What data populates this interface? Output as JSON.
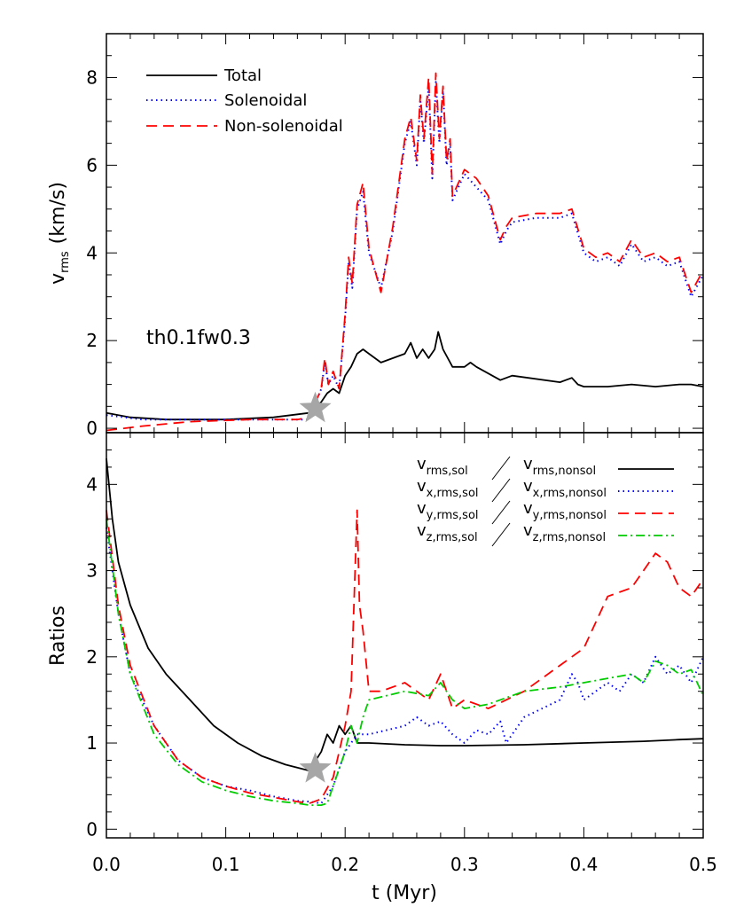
{
  "chart_data": [
    {
      "panel": "top",
      "type": "line",
      "xlabel": "",
      "ylabel": "v",
      "ylabel_sub": "rms",
      "ylabel_unit": "(km/s)",
      "annotation": "th0.1fw0.3",
      "xlim": [
        0,
        0.5
      ],
      "ylim": [
        -0.1,
        9.0
      ],
      "yticks": [
        0,
        2,
        4,
        6,
        8
      ],
      "ytick_labels": [
        "0",
        "2",
        "4",
        "6",
        "8"
      ],
      "legend_position": "top-left",
      "star_marker": {
        "x": 0.175,
        "y": 0.45
      },
      "series": [
        {
          "name": "Total",
          "color": "#000000",
          "dash": "solid",
          "x": [
            0.0,
            0.02,
            0.05,
            0.1,
            0.14,
            0.17,
            0.18,
            0.185,
            0.19,
            0.195,
            0.2,
            0.205,
            0.21,
            0.215,
            0.22,
            0.23,
            0.25,
            0.255,
            0.26,
            0.265,
            0.27,
            0.275,
            0.278,
            0.282,
            0.29,
            0.3,
            0.305,
            0.31,
            0.33,
            0.34,
            0.38,
            0.39,
            0.395,
            0.4,
            0.42,
            0.44,
            0.46,
            0.48,
            0.49,
            0.5
          ],
          "y": [
            0.35,
            0.25,
            0.2,
            0.2,
            0.25,
            0.35,
            0.6,
            0.8,
            0.9,
            0.8,
            1.2,
            1.4,
            1.7,
            1.8,
            1.7,
            1.5,
            1.7,
            1.95,
            1.6,
            1.8,
            1.6,
            1.8,
            2.2,
            1.8,
            1.4,
            1.4,
            1.5,
            1.4,
            1.1,
            1.2,
            1.05,
            1.15,
            1.0,
            0.95,
            0.95,
            1.0,
            0.95,
            1.0,
            1.0,
            0.95
          ]
        },
        {
          "name": "Solenoidal",
          "color": "#0000ff",
          "dash": "dotted",
          "x": [
            0.0,
            0.03,
            0.07,
            0.12,
            0.16,
            0.17,
            0.18,
            0.183,
            0.186,
            0.19,
            0.195,
            0.2,
            0.203,
            0.206,
            0.21,
            0.215,
            0.22,
            0.23,
            0.24,
            0.25,
            0.255,
            0.26,
            0.263,
            0.266,
            0.27,
            0.273,
            0.276,
            0.279,
            0.282,
            0.285,
            0.288,
            0.29,
            0.3,
            0.31,
            0.32,
            0.33,
            0.335,
            0.34,
            0.36,
            0.38,
            0.39,
            0.4,
            0.41,
            0.42,
            0.43,
            0.44,
            0.45,
            0.46,
            0.47,
            0.48,
            0.49,
            0.5
          ],
          "y": [
            0.3,
            0.2,
            0.2,
            0.2,
            0.2,
            0.2,
            0.9,
            1.5,
            1.0,
            1.2,
            0.9,
            2.5,
            3.8,
            3.2,
            5.0,
            5.4,
            4.0,
            3.2,
            4.5,
            6.5,
            7.0,
            6.0,
            7.5,
            6.5,
            7.8,
            5.7,
            7.9,
            6.5,
            7.7,
            6.0,
            6.5,
            5.2,
            5.8,
            5.5,
            5.2,
            4.2,
            4.5,
            4.7,
            4.8,
            4.8,
            4.9,
            4.0,
            3.8,
            3.9,
            3.7,
            4.2,
            3.8,
            3.9,
            3.7,
            3.8,
            3.0,
            3.5
          ]
        },
        {
          "name": "Non-solenoidal",
          "color": "#ff0000",
          "dash": "dashed",
          "x": [
            0.0,
            0.03,
            0.07,
            0.12,
            0.16,
            0.17,
            0.18,
            0.183,
            0.186,
            0.19,
            0.195,
            0.2,
            0.203,
            0.206,
            0.21,
            0.215,
            0.22,
            0.23,
            0.24,
            0.25,
            0.255,
            0.26,
            0.263,
            0.266,
            0.27,
            0.273,
            0.276,
            0.279,
            0.282,
            0.285,
            0.288,
            0.29,
            0.3,
            0.31,
            0.32,
            0.33,
            0.335,
            0.34,
            0.36,
            0.38,
            0.39,
            0.4,
            0.41,
            0.42,
            0.43,
            0.44,
            0.45,
            0.46,
            0.47,
            0.48,
            0.49,
            0.5
          ],
          "y": [
            -0.05,
            0.05,
            0.15,
            0.2,
            0.2,
            0.25,
            0.9,
            1.6,
            1.0,
            1.3,
            0.9,
            2.6,
            3.9,
            3.3,
            5.1,
            5.6,
            4.1,
            3.1,
            4.6,
            6.6,
            7.1,
            6.1,
            7.6,
            6.6,
            8.0,
            5.8,
            8.1,
            6.6,
            7.8,
            6.1,
            6.6,
            5.3,
            5.9,
            5.7,
            5.3,
            4.3,
            4.6,
            4.8,
            4.9,
            4.9,
            5.0,
            4.1,
            3.9,
            4.0,
            3.8,
            4.3,
            3.9,
            4.0,
            3.8,
            3.9,
            3.1,
            3.6
          ]
        }
      ]
    },
    {
      "panel": "bottom",
      "type": "line",
      "xlabel": "t (Myr)",
      "ylabel": "Ratios",
      "xlim": [
        0,
        0.5
      ],
      "ylim": [
        -0.1,
        4.6
      ],
      "xticks": [
        0.0,
        0.1,
        0.2,
        0.3,
        0.4,
        0.5
      ],
      "xtick_labels": [
        "0.0",
        "0.1",
        "0.2",
        "0.3",
        "0.4",
        "0.5"
      ],
      "yticks": [
        0,
        1,
        2,
        3,
        4
      ],
      "ytick_labels": [
        "0",
        "1",
        "2",
        "3",
        "4"
      ],
      "legend_position": "top-right",
      "star_marker": {
        "x": 0.175,
        "y": 0.7
      },
      "series": [
        {
          "name_num": "v",
          "num_sub": "rms,sol",
          "name_den": "v",
          "den_sub": "rms,nonsol",
          "color": "#000000",
          "dash": "solid",
          "x": [
            0.0,
            0.005,
            0.01,
            0.02,
            0.035,
            0.05,
            0.07,
            0.09,
            0.11,
            0.13,
            0.15,
            0.17,
            0.18,
            0.185,
            0.19,
            0.195,
            0.2,
            0.205,
            0.21,
            0.22,
            0.25,
            0.28,
            0.3,
            0.35,
            0.4,
            0.45,
            0.48,
            0.5
          ],
          "y": [
            4.3,
            3.6,
            3.1,
            2.6,
            2.1,
            1.8,
            1.5,
            1.2,
            1.0,
            0.85,
            0.75,
            0.68,
            0.9,
            1.1,
            1.0,
            1.2,
            1.1,
            1.2,
            1.0,
            1.0,
            0.98,
            0.97,
            0.97,
            0.98,
            1.0,
            1.02,
            1.04,
            1.05
          ]
        },
        {
          "name_num": "v",
          "num_sub": "x,rms,sol",
          "name_den": "v",
          "den_sub": "x,rms,nonsol",
          "color": "#0000ff",
          "dash": "dotted",
          "x": [
            0.0,
            0.01,
            0.02,
            0.04,
            0.06,
            0.08,
            0.1,
            0.12,
            0.14,
            0.16,
            0.17,
            0.18,
            0.19,
            0.2,
            0.21,
            0.22,
            0.25,
            0.26,
            0.27,
            0.28,
            0.29,
            0.3,
            0.31,
            0.32,
            0.33,
            0.335,
            0.35,
            0.38,
            0.39,
            0.395,
            0.4,
            0.41,
            0.42,
            0.43,
            0.44,
            0.45,
            0.46,
            0.47,
            0.48,
            0.49,
            0.5
          ],
          "y": [
            3.5,
            2.5,
            1.8,
            1.2,
            0.8,
            0.6,
            0.5,
            0.45,
            0.38,
            0.33,
            0.32,
            0.3,
            0.5,
            0.9,
            1.1,
            1.1,
            1.2,
            1.3,
            1.2,
            1.25,
            1.1,
            1.0,
            1.15,
            1.1,
            1.25,
            1.0,
            1.3,
            1.5,
            1.8,
            1.7,
            1.5,
            1.6,
            1.7,
            1.6,
            1.8,
            1.7,
            2.0,
            1.8,
            1.9,
            1.7,
            2.0
          ]
        },
        {
          "name_num": "v",
          "num_sub": "y,rms,sol",
          "name_den": "v",
          "den_sub": "y,rms,nonsol",
          "color": "#ff0000",
          "dash": "dashed",
          "x": [
            0.0,
            0.01,
            0.02,
            0.04,
            0.06,
            0.08,
            0.1,
            0.12,
            0.14,
            0.16,
            0.17,
            0.18,
            0.19,
            0.195,
            0.2,
            0.205,
            0.21,
            0.212,
            0.215,
            0.22,
            0.23,
            0.25,
            0.26,
            0.27,
            0.28,
            0.29,
            0.3,
            0.32,
            0.35,
            0.38,
            0.4,
            0.42,
            0.44,
            0.45,
            0.46,
            0.47,
            0.48,
            0.49,
            0.5
          ],
          "y": [
            3.7,
            2.6,
            1.9,
            1.2,
            0.8,
            0.6,
            0.5,
            0.42,
            0.37,
            0.32,
            0.3,
            0.35,
            0.6,
            0.9,
            1.2,
            1.6,
            3.7,
            2.6,
            2.3,
            1.6,
            1.6,
            1.7,
            1.6,
            1.5,
            1.8,
            1.4,
            1.5,
            1.4,
            1.6,
            1.9,
            2.1,
            2.7,
            2.8,
            3.0,
            3.2,
            3.1,
            2.8,
            2.7,
            2.9
          ]
        },
        {
          "name_num": "v",
          "num_sub": "z,rms,sol",
          "name_den": "v",
          "den_sub": "z,rms,nonsol",
          "color": "#00cc00",
          "dash": "dashdot",
          "x": [
            0.0,
            0.01,
            0.02,
            0.04,
            0.06,
            0.08,
            0.1,
            0.12,
            0.14,
            0.16,
            0.17,
            0.18,
            0.185,
            0.19,
            0.2,
            0.205,
            0.21,
            0.215,
            0.22,
            0.25,
            0.27,
            0.28,
            0.29,
            0.3,
            0.32,
            0.35,
            0.38,
            0.4,
            0.42,
            0.44,
            0.45,
            0.46,
            0.47,
            0.48,
            0.49,
            0.5
          ],
          "y": [
            3.6,
            2.5,
            1.8,
            1.1,
            0.75,
            0.55,
            0.45,
            0.38,
            0.33,
            0.3,
            0.28,
            0.28,
            0.3,
            0.5,
            0.9,
            1.2,
            1.0,
            1.3,
            1.5,
            1.6,
            1.55,
            1.7,
            1.5,
            1.4,
            1.45,
            1.6,
            1.65,
            1.7,
            1.75,
            1.8,
            1.7,
            1.95,
            1.9,
            1.8,
            1.85,
            1.55
          ]
        }
      ]
    }
  ]
}
